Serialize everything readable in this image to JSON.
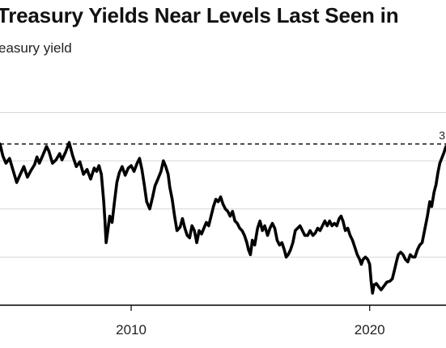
{
  "header": {
    "title": "Treasury Yields Near Levels Last Seen in",
    "subtitle": "easury yield"
  },
  "chart_data": {
    "type": "line",
    "title": "Treasury Yields Near Levels Last Seen in",
    "subtitle": "easury yield",
    "xlabel": "",
    "ylabel": "",
    "x_tick_labels": [
      {
        "year": 2010,
        "label": "2010"
      },
      {
        "year": 2020,
        "label": "2020"
      }
    ],
    "grid": "horizontal",
    "xlim": [
      2004.5,
      2023.2
    ],
    "ylim": [
      0,
      5.2
    ],
    "y_gridlines": [
      1,
      2,
      3,
      4
    ],
    "reference_line": {
      "value": 3.35,
      "style": "dashed",
      "label": "3"
    },
    "series": [
      {
        "color": "#000000",
        "points": [
          [
            2004.5,
            3.35
          ],
          [
            2004.62,
            3.1
          ],
          [
            2004.75,
            2.95
          ],
          [
            2004.9,
            3.05
          ],
          [
            2005.05,
            2.8
          ],
          [
            2005.2,
            2.55
          ],
          [
            2005.35,
            2.72
          ],
          [
            2005.5,
            2.88
          ],
          [
            2005.65,
            2.66
          ],
          [
            2005.8,
            2.8
          ],
          [
            2005.95,
            2.92
          ],
          [
            2006.05,
            3.08
          ],
          [
            2006.15,
            2.95
          ],
          [
            2006.3,
            3.12
          ],
          [
            2006.45,
            3.3
          ],
          [
            2006.55,
            3.2
          ],
          [
            2006.7,
            2.95
          ],
          [
            2006.85,
            3.02
          ],
          [
            2007.0,
            3.15
          ],
          [
            2007.1,
            3.02
          ],
          [
            2007.25,
            3.18
          ],
          [
            2007.4,
            3.38
          ],
          [
            2007.55,
            3.1
          ],
          [
            2007.7,
            2.88
          ],
          [
            2007.85,
            2.98
          ],
          [
            2008.0,
            2.72
          ],
          [
            2008.15,
            2.82
          ],
          [
            2008.3,
            2.62
          ],
          [
            2008.45,
            2.85
          ],
          [
            2008.55,
            2.78
          ],
          [
            2008.65,
            2.9
          ],
          [
            2008.75,
            2.72
          ],
          [
            2008.85,
            2.15
          ],
          [
            2008.9,
            1.75
          ],
          [
            2008.95,
            1.3
          ],
          [
            2009.02,
            1.55
          ],
          [
            2009.1,
            1.85
          ],
          [
            2009.2,
            1.72
          ],
          [
            2009.3,
            2.15
          ],
          [
            2009.4,
            2.55
          ],
          [
            2009.5,
            2.75
          ],
          [
            2009.62,
            2.88
          ],
          [
            2009.75,
            2.7
          ],
          [
            2009.88,
            2.85
          ],
          [
            2010.0,
            2.9
          ],
          [
            2010.12,
            2.78
          ],
          [
            2010.25,
            2.95
          ],
          [
            2010.35,
            3.05
          ],
          [
            2010.45,
            2.82
          ],
          [
            2010.55,
            2.5
          ],
          [
            2010.65,
            2.15
          ],
          [
            2010.78,
            2.0
          ],
          [
            2010.9,
            2.25
          ],
          [
            2011.0,
            2.48
          ],
          [
            2011.12,
            2.62
          ],
          [
            2011.25,
            2.78
          ],
          [
            2011.35,
            3.0
          ],
          [
            2011.45,
            2.88
          ],
          [
            2011.55,
            2.72
          ],
          [
            2011.62,
            2.45
          ],
          [
            2011.72,
            2.2
          ],
          [
            2011.82,
            1.85
          ],
          [
            2011.92,
            1.55
          ],
          [
            2012.05,
            1.62
          ],
          [
            2012.15,
            1.8
          ],
          [
            2012.25,
            1.6
          ],
          [
            2012.35,
            1.45
          ],
          [
            2012.45,
            1.4
          ],
          [
            2012.55,
            1.65
          ],
          [
            2012.65,
            1.55
          ],
          [
            2012.75,
            1.3
          ],
          [
            2012.85,
            1.55
          ],
          [
            2012.95,
            1.48
          ],
          [
            2013.05,
            1.6
          ],
          [
            2013.15,
            1.72
          ],
          [
            2013.25,
            1.65
          ],
          [
            2013.35,
            1.85
          ],
          [
            2013.45,
            2.05
          ],
          [
            2013.55,
            2.2
          ],
          [
            2013.65,
            2.15
          ],
          [
            2013.75,
            2.25
          ],
          [
            2013.85,
            2.1
          ],
          [
            2013.95,
            2.0
          ],
          [
            2014.05,
            1.95
          ],
          [
            2014.15,
            1.85
          ],
          [
            2014.25,
            1.95
          ],
          [
            2014.35,
            1.75
          ],
          [
            2014.45,
            1.7
          ],
          [
            2014.55,
            1.6
          ],
          [
            2014.65,
            1.55
          ],
          [
            2014.75,
            1.45
          ],
          [
            2014.85,
            1.3
          ],
          [
            2014.92,
            1.15
          ],
          [
            2015.0,
            1.05
          ],
          [
            2015.08,
            1.35
          ],
          [
            2015.18,
            1.25
          ],
          [
            2015.3,
            1.6
          ],
          [
            2015.4,
            1.75
          ],
          [
            2015.5,
            1.55
          ],
          [
            2015.6,
            1.65
          ],
          [
            2015.72,
            1.45
          ],
          [
            2015.82,
            1.6
          ],
          [
            2015.92,
            1.7
          ],
          [
            2016.02,
            1.6
          ],
          [
            2016.12,
            1.35
          ],
          [
            2016.22,
            1.25
          ],
          [
            2016.32,
            1.3
          ],
          [
            2016.42,
            1.15
          ],
          [
            2016.5,
            1.0
          ],
          [
            2016.58,
            1.05
          ],
          [
            2016.68,
            1.15
          ],
          [
            2016.78,
            1.3
          ],
          [
            2016.88,
            1.55
          ],
          [
            2016.98,
            1.6
          ],
          [
            2017.08,
            1.65
          ],
          [
            2017.18,
            1.55
          ],
          [
            2017.28,
            1.45
          ],
          [
            2017.4,
            1.45
          ],
          [
            2017.5,
            1.55
          ],
          [
            2017.62,
            1.45
          ],
          [
            2017.72,
            1.5
          ],
          [
            2017.82,
            1.6
          ],
          [
            2017.92,
            1.55
          ],
          [
            2018.02,
            1.65
          ],
          [
            2018.12,
            1.75
          ],
          [
            2018.22,
            1.65
          ],
          [
            2018.32,
            1.75
          ],
          [
            2018.42,
            1.65
          ],
          [
            2018.52,
            1.7
          ],
          [
            2018.62,
            1.65
          ],
          [
            2018.72,
            1.8
          ],
          [
            2018.8,
            1.85
          ],
          [
            2018.88,
            1.75
          ],
          [
            2018.98,
            1.55
          ],
          [
            2019.08,
            1.6
          ],
          [
            2019.18,
            1.45
          ],
          [
            2019.28,
            1.35
          ],
          [
            2019.38,
            1.2
          ],
          [
            2019.48,
            1.05
          ],
          [
            2019.58,
            0.95
          ],
          [
            2019.65,
            0.85
          ],
          [
            2019.72,
            0.95
          ],
          [
            2019.82,
            1.0
          ],
          [
            2019.92,
            0.95
          ],
          [
            2020.0,
            0.85
          ],
          [
            2020.06,
            0.5
          ],
          [
            2020.12,
            0.25
          ],
          [
            2020.18,
            0.42
          ],
          [
            2020.28,
            0.45
          ],
          [
            2020.38,
            0.38
          ],
          [
            2020.48,
            0.32
          ],
          [
            2020.6,
            0.4
          ],
          [
            2020.72,
            0.48
          ],
          [
            2020.85,
            0.5
          ],
          [
            2020.95,
            0.55
          ],
          [
            2021.05,
            0.75
          ],
          [
            2021.12,
            0.9
          ],
          [
            2021.2,
            1.05
          ],
          [
            2021.3,
            1.1
          ],
          [
            2021.4,
            1.05
          ],
          [
            2021.5,
            0.95
          ],
          [
            2021.6,
            0.9
          ],
          [
            2021.7,
            1.05
          ],
          [
            2021.8,
            1.0
          ],
          [
            2021.9,
            1.0
          ],
          [
            2022.0,
            1.15
          ],
          [
            2022.1,
            1.25
          ],
          [
            2022.2,
            1.3
          ],
          [
            2022.3,
            1.55
          ],
          [
            2022.42,
            1.85
          ],
          [
            2022.52,
            2.15
          ],
          [
            2022.6,
            2.05
          ],
          [
            2022.7,
            2.35
          ],
          [
            2022.78,
            2.5
          ],
          [
            2022.86,
            2.75
          ],
          [
            2022.94,
            2.95
          ],
          [
            2023.02,
            3.05
          ],
          [
            2023.1,
            3.15
          ],
          [
            2023.2,
            3.3
          ]
        ]
      }
    ]
  },
  "colors": {
    "line": "#000000",
    "grid": "#d6d6d6",
    "axis": "#000000",
    "text": "#222222"
  }
}
